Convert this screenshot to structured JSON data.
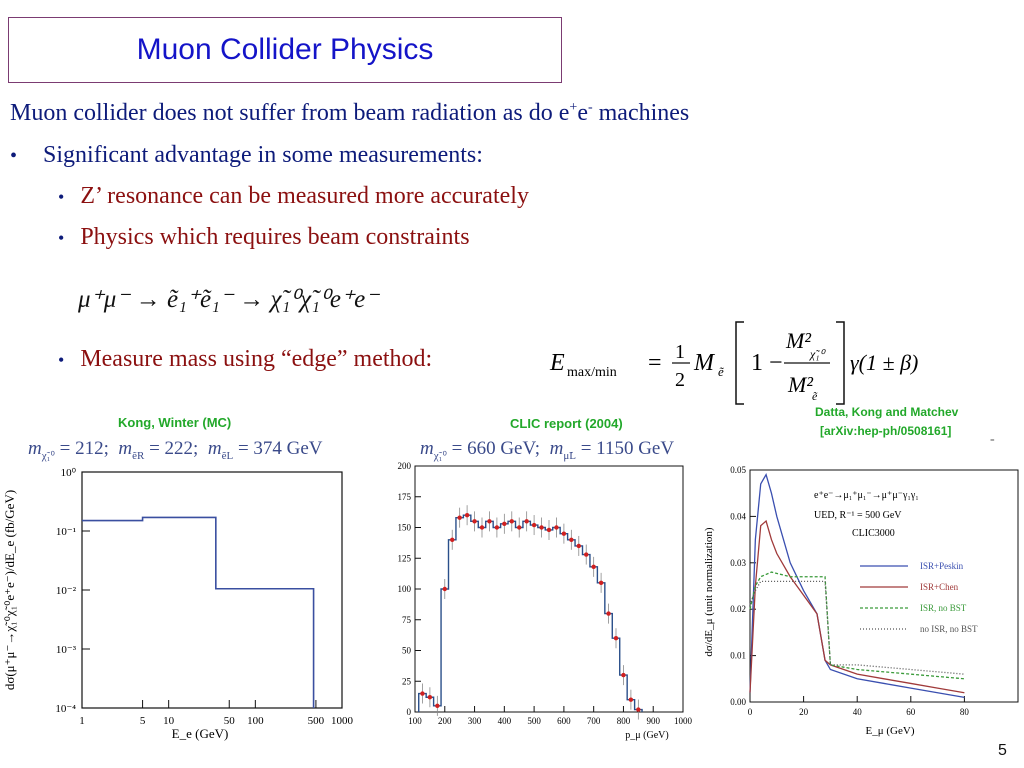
{
  "slide": {
    "title": "Muon Collider Physics",
    "page_number": "5",
    "line1_text": "Muon collider does not suffer from beam radiation as do e",
    "line1_sup1": "+",
    "line1_mid": "e",
    "line1_sup2": "-",
    "line1_end": " machines",
    "bullet1": "Significant advantage in some measurements:",
    "sub1": "Z’ resonance can be measured more accurately",
    "sub2": "Physics which requires beam constraints",
    "bullet2": "Measure mass using “edge” method:",
    "reaction": "μ⁺μ⁻ → ẽ₁⁺ẽ₁⁻ → χ̃₁⁰χ̃₁⁰e⁺e⁻",
    "formula_lhs": "E",
    "formula_sub": "max/min",
    "formula_rest": "= ½ M",
    "formula_right": "γ(1 ± β)"
  },
  "captions": {
    "left_credit": "Kong, Winter  (MC)",
    "mid_credit": "CLIC report (2004)",
    "right_credit_1": "Datta, Kong and Matchev",
    "right_credit_2": "[arXiv:hep-ph/0508161]",
    "left_masses": "m = 212;  m = 222;  m = 374 GeV",
    "mid_masses": "m = 660 GeV;  m = 1150 GeV"
  },
  "plot_left": {
    "ylabel": "dσ(μ⁺μ⁻→χ̃₁⁰χ̃₁⁰e⁺e⁻)/dE_e (fb/GeV)",
    "xlabel": "E_e  (GeV)",
    "yticks": [
      "10⁰",
      "10⁻¹",
      "10⁻²",
      "10⁻³",
      "10⁻⁴"
    ],
    "xticks": [
      "1",
      "5",
      "10",
      "50",
      "100",
      "500",
      "1000"
    ]
  },
  "plot_mid": {
    "xlabel": "p_μ (GeV)",
    "yticks": [
      "200",
      "175",
      "150",
      "125",
      "100",
      "75",
      "50",
      "25",
      "0"
    ],
    "xticks": [
      "100",
      "200",
      "300",
      "400",
      "500",
      "600",
      "700",
      "800",
      "900",
      "1000"
    ]
  },
  "plot_right": {
    "ylabel": "dσ/dE_μ (unit normalization)",
    "xlabel": "E_μ  (GeV)",
    "yticks": [
      "0.05",
      "0.04",
      "0.03",
      "0.02",
      "0.01",
      "0.00"
    ],
    "xticks": [
      "0",
      "20",
      "40",
      "60",
      "80"
    ],
    "process": "e⁺e⁻→μ₁⁺μ₁⁻→μ⁺μ⁻γ₁γ₁",
    "params": "UED, R⁻¹ = 500 GeV",
    "machine": "CLIC3000",
    "legend": [
      {
        "label": "ISR+Peskin",
        "color": "#3a4fb0"
      },
      {
        "label": "ISR+Chen",
        "color": "#a03a3a"
      },
      {
        "label": "ISR, no BST",
        "color": "#3a9a3a"
      },
      {
        "label": "no ISR, no BST",
        "color": "#555555"
      }
    ]
  },
  "chart_data": [
    {
      "type": "line",
      "title": "Kong, Winter  (MC)",
      "xlabel": "E_e (GeV)",
      "ylabel": "dσ/dE_e (fb/GeV)",
      "xscale": "log",
      "yscale": "log",
      "xlim": [
        1,
        1000
      ],
      "ylim": [
        0.0001,
        1
      ],
      "x": [
        1,
        5,
        30,
        35,
        45,
        100,
        300,
        450,
        470
      ],
      "y": [
        0.15,
        0.17,
        0.17,
        0.0105,
        0.0105,
        0.0105,
        0.0105,
        0.0105,
        0.0001
      ]
    },
    {
      "type": "bar",
      "title": "CLIC report (2004)",
      "xlabel": "p_μ (GeV)",
      "xlim": [
        100,
        1000
      ],
      "ylim": [
        0,
        200
      ],
      "categories": [
        125,
        150,
        175,
        200,
        225,
        250,
        275,
        300,
        325,
        350,
        375,
        400,
        425,
        450,
        475,
        500,
        525,
        550,
        575,
        600,
        625,
        650,
        675,
        700,
        725,
        750,
        775,
        800,
        825,
        850
      ],
      "values": [
        15,
        12,
        5,
        100,
        140,
        158,
        160,
        155,
        150,
        155,
        150,
        153,
        155,
        150,
        155,
        152,
        150,
        148,
        150,
        145,
        140,
        135,
        128,
        118,
        105,
        80,
        60,
        30,
        10,
        2
      ]
    },
    {
      "type": "line",
      "title": "Datta, Kong and Matchev",
      "xlabel": "E_μ (GeV)",
      "ylabel": "dσ/dE_μ (unit normalization)",
      "xlim": [
        0,
        80
      ],
      "ylim": [
        0,
        0.05
      ],
      "series": [
        {
          "name": "ISR+Peskin",
          "x": [
            0,
            2,
            4,
            6,
            8,
            10,
            15,
            20,
            25,
            28,
            30,
            40,
            50,
            60,
            70,
            80
          ],
          "y": [
            0.002,
            0.035,
            0.047,
            0.049,
            0.045,
            0.04,
            0.03,
            0.024,
            0.019,
            0.009,
            0.007,
            0.005,
            0.004,
            0.003,
            0.002,
            0.001
          ]
        },
        {
          "name": "ISR+Chen",
          "x": [
            0,
            2,
            4,
            6,
            8,
            10,
            15,
            20,
            25,
            28,
            30,
            40,
            50,
            60,
            70,
            80
          ],
          "y": [
            0.002,
            0.025,
            0.038,
            0.039,
            0.035,
            0.032,
            0.027,
            0.023,
            0.019,
            0.009,
            0.008,
            0.006,
            0.005,
            0.004,
            0.003,
            0.002
          ]
        },
        {
          "name": "ISR, no BST",
          "x": [
            0,
            2,
            4,
            8,
            15,
            20,
            28,
            30,
            40,
            60,
            80
          ],
          "y": [
            0.02,
            0.025,
            0.027,
            0.028,
            0.027,
            0.027,
            0.027,
            0.008,
            0.007,
            0.006,
            0.005
          ]
        },
        {
          "name": "no ISR, no BST",
          "x": [
            0,
            2,
            4,
            8,
            15,
            20,
            28,
            30,
            40,
            60,
            80
          ],
          "y": [
            0.021,
            0.024,
            0.026,
            0.026,
            0.026,
            0.026,
            0.026,
            0.008,
            0.008,
            0.007,
            0.006
          ]
        }
      ]
    }
  ]
}
